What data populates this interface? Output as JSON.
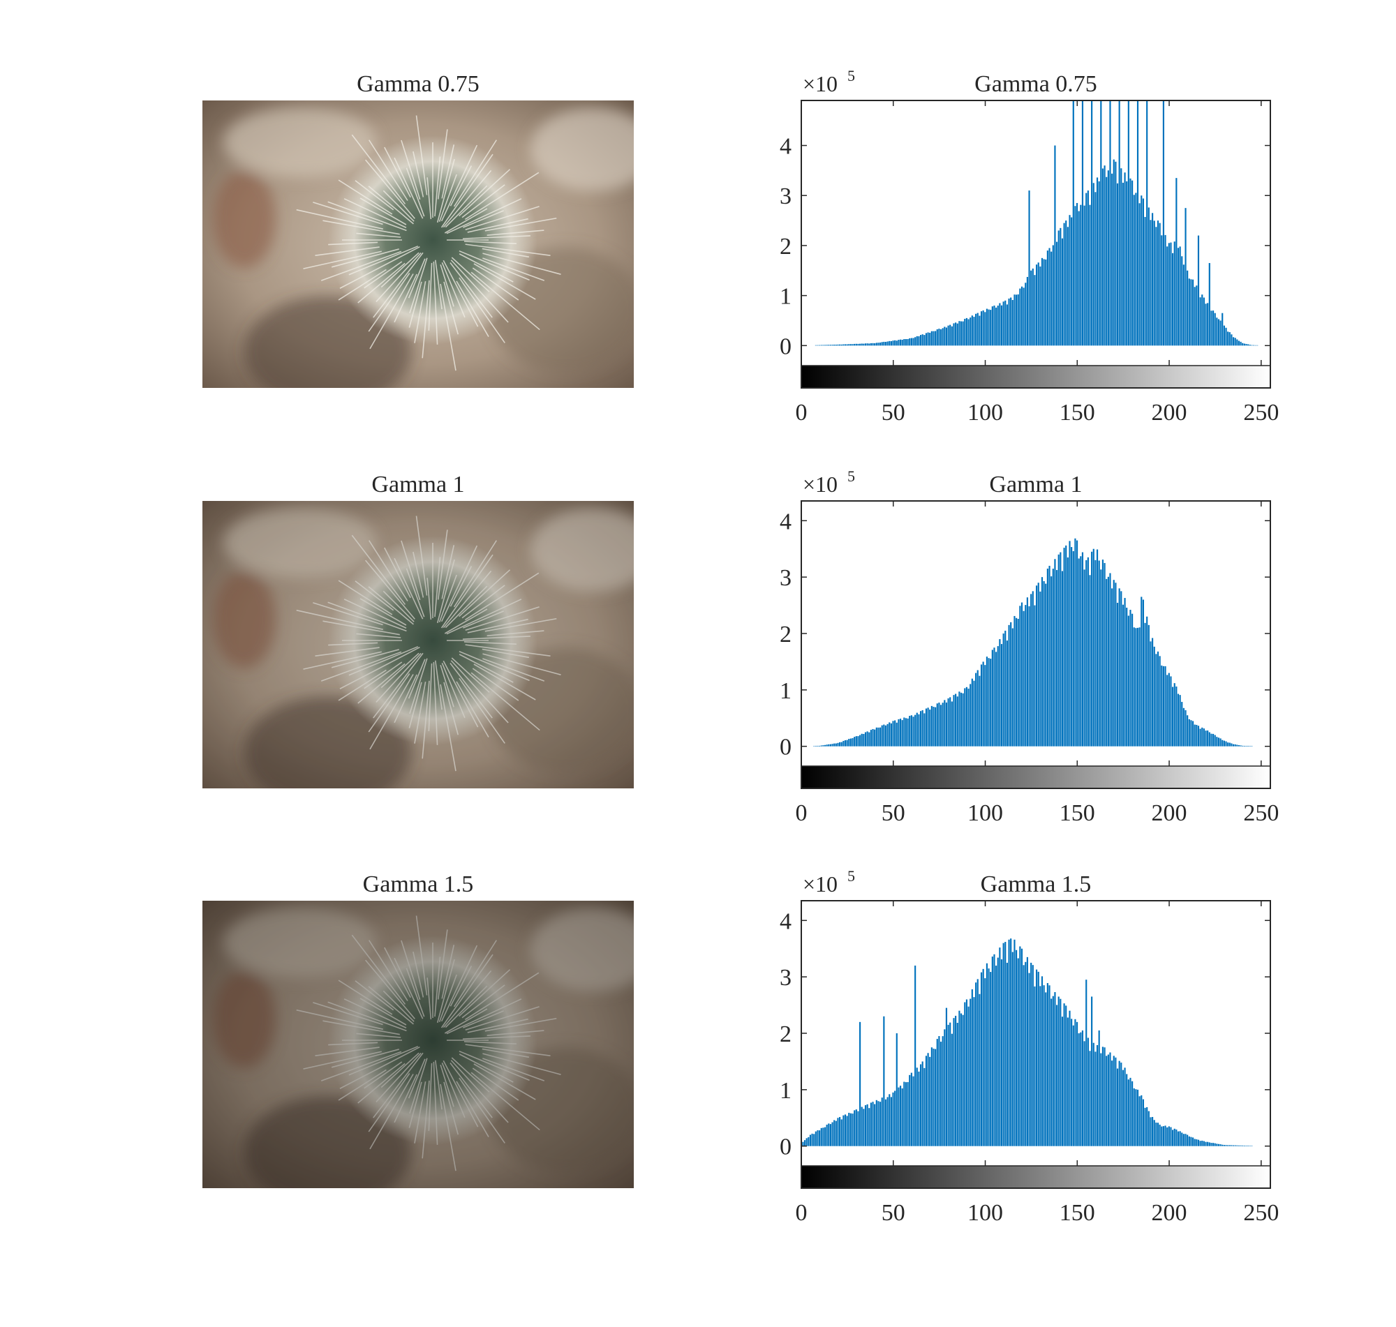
{
  "colors": {
    "bar": "#0072BD",
    "axis": "#262626"
  },
  "photo": {
    "subject": "cactus close-up"
  },
  "chart_data": [
    {
      "type": "bar",
      "title": "Gamma 0.75",
      "exponent_label": "×10",
      "exponent_sup": "5",
      "xlim": [
        0,
        255
      ],
      "ylim": [
        -0.4,
        4.9
      ],
      "xticks": [
        "0",
        "50",
        "100",
        "150",
        "200",
        "250"
      ],
      "yticks": [
        "0",
        "1",
        "2",
        "3",
        "4"
      ],
      "keypoints": [
        [
          0,
          0
        ],
        [
          20,
          0.02
        ],
        [
          40,
          0.05
        ],
        [
          60,
          0.15
        ],
        [
          80,
          0.4
        ],
        [
          90,
          0.55
        ],
        [
          100,
          0.72
        ],
        [
          110,
          0.88
        ],
        [
          115,
          0.98
        ],
        [
          120,
          1.18
        ],
        [
          125,
          1.5
        ],
        [
          130,
          1.7
        ],
        [
          135,
          1.95
        ],
        [
          140,
          2.3
        ],
        [
          145,
          2.55
        ],
        [
          150,
          2.85
        ],
        [
          155,
          3.05
        ],
        [
          160,
          3.3
        ],
        [
          165,
          3.6
        ],
        [
          170,
          3.72
        ],
        [
          175,
          3.5
        ],
        [
          180,
          3.3
        ],
        [
          185,
          3.0
        ],
        [
          190,
          2.7
        ],
        [
          195,
          2.45
        ],
        [
          200,
          2.05
        ],
        [
          205,
          2.1
        ],
        [
          210,
          1.5
        ],
        [
          215,
          1.2
        ],
        [
          220,
          0.9
        ],
        [
          225,
          0.65
        ],
        [
          230,
          0.4
        ],
        [
          235,
          0.18
        ],
        [
          240,
          0.05
        ],
        [
          245,
          0.01
        ],
        [
          255,
          0
        ]
      ],
      "spikes": [
        [
          124,
          3.1
        ],
        [
          138,
          4.0
        ],
        [
          148,
          5.0
        ],
        [
          153,
          5.0
        ],
        [
          158,
          5.0
        ],
        [
          163,
          5.0
        ],
        [
          168,
          5.0
        ],
        [
          173,
          5.0
        ],
        [
          178,
          5.0
        ],
        [
          183,
          5.0
        ],
        [
          188,
          5.0
        ],
        [
          197,
          5.0
        ],
        [
          204,
          3.35
        ],
        [
          209,
          2.75
        ],
        [
          216,
          2.2
        ],
        [
          222,
          1.65
        ],
        [
          229,
          0.65
        ]
      ]
    },
    {
      "type": "bar",
      "title": "Gamma 1",
      "exponent_label": "×10",
      "exponent_sup": "5",
      "xlim": [
        0,
        255
      ],
      "ylim": [
        -0.35,
        4.35
      ],
      "xticks": [
        "0",
        "50",
        "100",
        "150",
        "200",
        "250"
      ],
      "yticks": [
        "0",
        "1",
        "2",
        "3",
        "4"
      ],
      "keypoints": [
        [
          0,
          0
        ],
        [
          10,
          0.01
        ],
        [
          20,
          0.06
        ],
        [
          30,
          0.18
        ],
        [
          40,
          0.32
        ],
        [
          50,
          0.45
        ],
        [
          60,
          0.55
        ],
        [
          70,
          0.7
        ],
        [
          80,
          0.85
        ],
        [
          90,
          1.05
        ],
        [
          95,
          1.3
        ],
        [
          100,
          1.55
        ],
        [
          105,
          1.75
        ],
        [
          110,
          2.0
        ],
        [
          115,
          2.25
        ],
        [
          120,
          2.55
        ],
        [
          125,
          2.7
        ],
        [
          130,
          2.95
        ],
        [
          135,
          3.2
        ],
        [
          140,
          3.4
        ],
        [
          145,
          3.6
        ],
        [
          148,
          3.72
        ],
        [
          150,
          3.65
        ],
        [
          155,
          3.3
        ],
        [
          160,
          3.55
        ],
        [
          165,
          3.25
        ],
        [
          170,
          2.95
        ],
        [
          175,
          2.7
        ],
        [
          180,
          2.35
        ],
        [
          183,
          2.1
        ],
        [
          186,
          2.6
        ],
        [
          190,
          2.0
        ],
        [
          195,
          1.6
        ],
        [
          200,
          1.3
        ],
        [
          205,
          1.0
        ],
        [
          210,
          0.55
        ],
        [
          215,
          0.38
        ],
        [
          220,
          0.3
        ],
        [
          225,
          0.2
        ],
        [
          230,
          0.1
        ],
        [
          235,
          0.04
        ],
        [
          240,
          0.01
        ],
        [
          255,
          0
        ]
      ],
      "spikes": [
        [
          185,
          2.65
        ]
      ]
    },
    {
      "type": "bar",
      "title": "Gamma 1.5",
      "exponent_label": "×10",
      "exponent_sup": "5",
      "xlim": [
        0,
        255
      ],
      "ylim": [
        -0.35,
        4.35
      ],
      "xticks": [
        "0",
        "50",
        "100",
        "150",
        "200",
        "250"
      ],
      "yticks": [
        "0",
        "1",
        "2",
        "3",
        "4"
      ],
      "keypoints": [
        [
          0,
          0.05
        ],
        [
          5,
          0.2
        ],
        [
          10,
          0.3
        ],
        [
          20,
          0.5
        ],
        [
          30,
          0.65
        ],
        [
          40,
          0.8
        ],
        [
          50,
          0.95
        ],
        [
          55,
          1.1
        ],
        [
          60,
          1.3
        ],
        [
          65,
          1.45
        ],
        [
          70,
          1.7
        ],
        [
          75,
          1.95
        ],
        [
          80,
          2.15
        ],
        [
          85,
          2.35
        ],
        [
          90,
          2.6
        ],
        [
          95,
          2.9
        ],
        [
          100,
          3.2
        ],
        [
          105,
          3.4
        ],
        [
          110,
          3.6
        ],
        [
          115,
          3.7
        ],
        [
          120,
          3.5
        ],
        [
          125,
          3.25
        ],
        [
          130,
          3.05
        ],
        [
          135,
          2.85
        ],
        [
          140,
          2.65
        ],
        [
          145,
          2.45
        ],
        [
          150,
          2.2
        ],
        [
          155,
          1.95
        ],
        [
          160,
          1.8
        ],
        [
          165,
          1.75
        ],
        [
          170,
          1.6
        ],
        [
          175,
          1.45
        ],
        [
          180,
          1.15
        ],
        [
          185,
          0.9
        ],
        [
          190,
          0.55
        ],
        [
          195,
          0.38
        ],
        [
          200,
          0.35
        ],
        [
          205,
          0.28
        ],
        [
          210,
          0.2
        ],
        [
          215,
          0.12
        ],
        [
          220,
          0.08
        ],
        [
          225,
          0.05
        ],
        [
          230,
          0.02
        ],
        [
          240,
          0.01
        ],
        [
          255,
          0
        ]
      ],
      "spikes": [
        [
          32,
          2.2
        ],
        [
          45,
          2.3
        ],
        [
          52,
          2.0
        ],
        [
          62,
          3.2
        ],
        [
          79,
          2.45
        ],
        [
          155,
          2.95
        ],
        [
          158,
          2.65
        ],
        [
          162,
          2.05
        ]
      ]
    }
  ]
}
